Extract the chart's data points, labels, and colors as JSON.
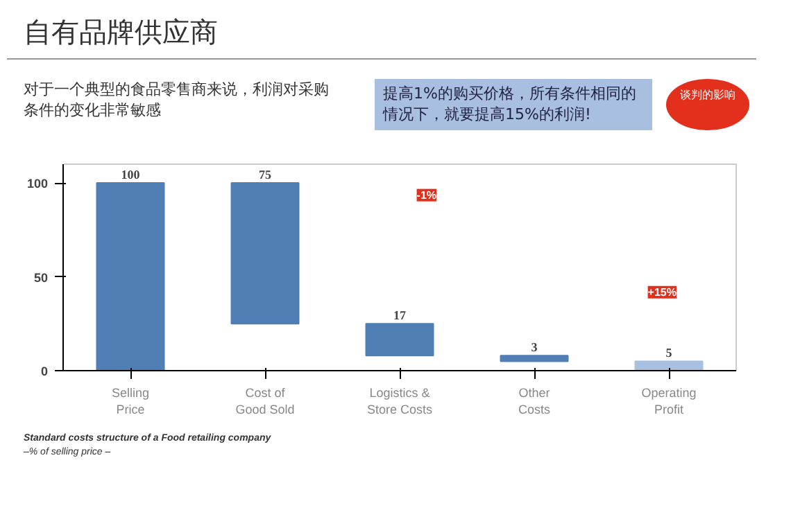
{
  "chart_data": {
    "type": "bar",
    "title": "自有品牌供应商",
    "categories": [
      "Selling\nPrice",
      "Cost of\nGood Sold",
      "Logistics &\nStore Costs",
      "Other\nCosts",
      "Operating\nProfit"
    ],
    "values": [
      100,
      75,
      17,
      3,
      5
    ],
    "base": [
      0,
      25,
      8,
      5,
      0
    ],
    "colors": [
      "#4f7fb5",
      "#4f7fb5",
      "#4f7fb5",
      "#4f7fb5",
      "#a7c0df"
    ],
    "ylim": [
      0,
      110
    ],
    "yticks": [
      0,
      50,
      100
    ],
    "grid": false,
    "data_labels": true,
    "annotations": [
      "对于一个典型的食品零售商来说，利润对采购条件的变化非常敏感",
      "提高1%的购买价格，所有条件相同的情况下，就要提高15%的利润!",
      "谈判的影响",
      "-1%",
      "+15%",
      "Standard costs structure of a Food retailing company",
      "–% of selling price –"
    ]
  }
}
